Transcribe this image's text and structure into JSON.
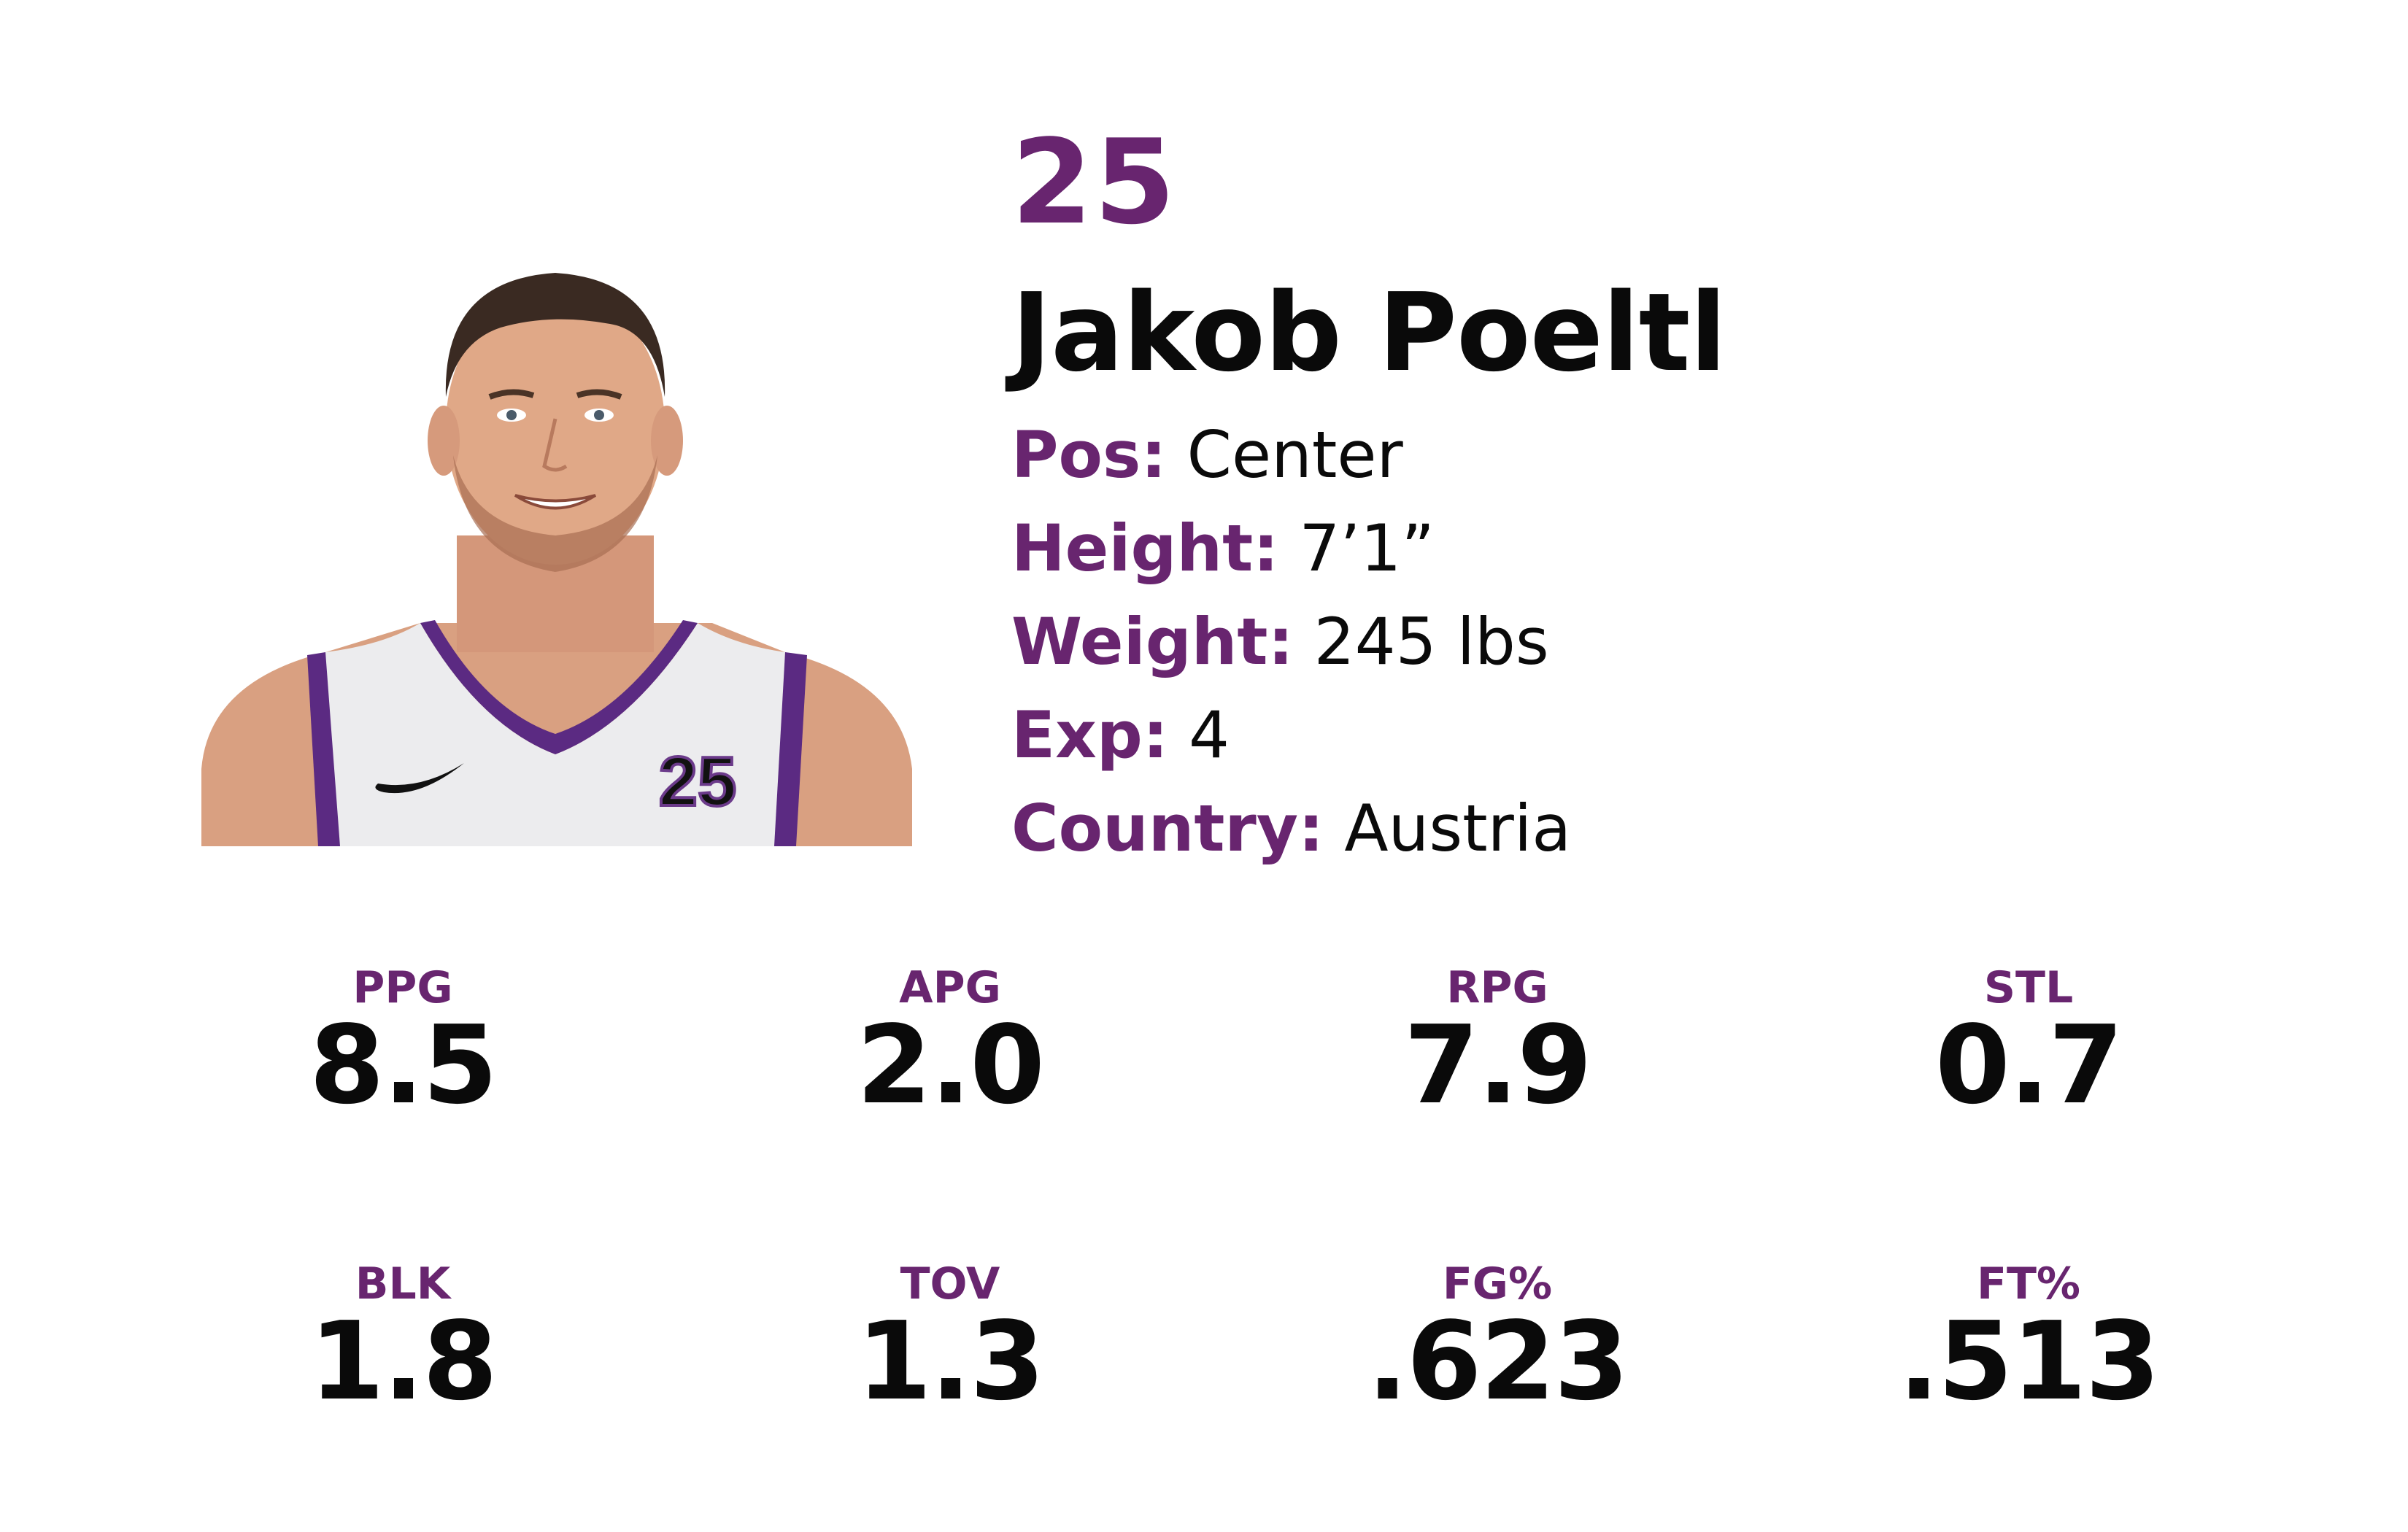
{
  "player": {
    "number": "25",
    "name": "Jakob Poeltl",
    "jersey_number": "25",
    "attributes": [
      {
        "label": "Pos:",
        "value": "Center"
      },
      {
        "label": "Height:",
        "value": "7’1”"
      },
      {
        "label": "Weight:",
        "value": "245 lbs"
      },
      {
        "label": "Exp:",
        "value": "4"
      },
      {
        "label": "Country:",
        "value": "Austria"
      }
    ]
  },
  "stats": [
    {
      "label": "PPG",
      "value": "8.5"
    },
    {
      "label": "APG",
      "value": "2.0"
    },
    {
      "label": "RPG",
      "value": "7.9"
    },
    {
      "label": "STL",
      "value": "0.7"
    },
    {
      "label": "BLK",
      "value": "1.8"
    },
    {
      "label": "TOV",
      "value": "1.3"
    },
    {
      "label": "FG%",
      "value": ".623"
    },
    {
      "label": "FT%",
      "value": ".513"
    }
  ],
  "colors": {
    "accent": "#68256f",
    "text": "#0a0a0a",
    "background": "#ffffff"
  }
}
